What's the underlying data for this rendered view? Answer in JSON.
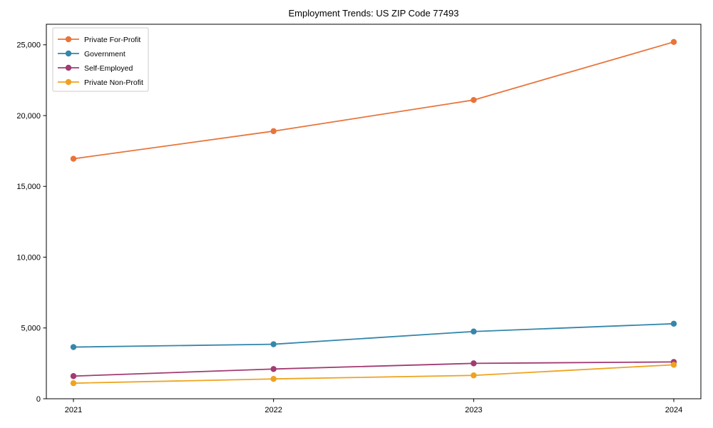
{
  "chart_data": {
    "type": "line",
    "title": "Employment Trends: US ZIP Code 77493",
    "xlabel": "",
    "ylabel": "",
    "categories": [
      "2021",
      "2022",
      "2023",
      "2024"
    ],
    "series": [
      {
        "name": "Private For-Profit",
        "color": "#E8743B",
        "values": [
          16950,
          18900,
          21100,
          25200
        ]
      },
      {
        "name": "Government",
        "color": "#3586AB",
        "values": [
          3650,
          3850,
          4750,
          5300
        ]
      },
      {
        "name": "Self-Employed",
        "color": "#A23B72",
        "values": [
          1600,
          2100,
          2500,
          2600
        ]
      },
      {
        "name": "Private Non-Profit",
        "color": "#EEA320",
        "values": [
          1100,
          1400,
          1650,
          2400
        ]
      }
    ],
    "yticks": {
      "values": [
        0,
        5000,
        10000,
        15000,
        20000,
        25000
      ],
      "labels": [
        "0",
        "5,000",
        "10,000",
        "15,000",
        "20,000",
        "25,000"
      ]
    },
    "ylim": [
      0,
      26450
    ],
    "grid": false,
    "legend_position": "upper-left",
    "axis_color": "#000000",
    "legend_border_color": "#cccccc",
    "legend_background": "#ffffff",
    "background": "#ffffff"
  }
}
